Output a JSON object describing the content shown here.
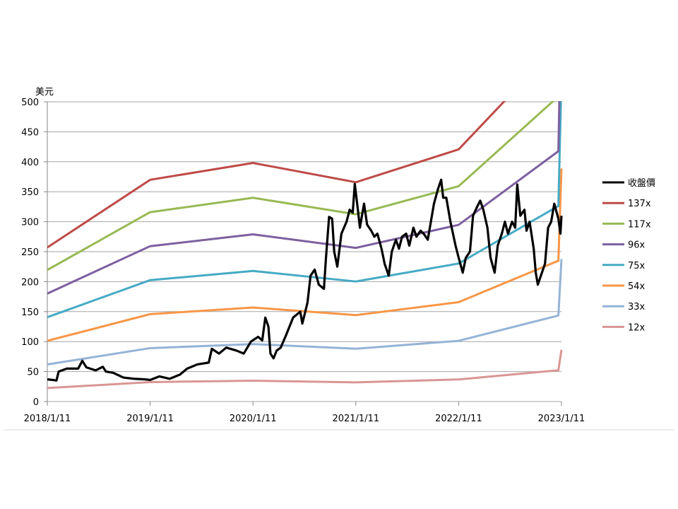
{
  "chart_data": {
    "type": "line",
    "title": "",
    "ylabel": "美元",
    "xlabel": "",
    "ylim": [
      0,
      500
    ],
    "yticks": [
      "0",
      "50",
      "100",
      "150",
      "200",
      "250",
      "300",
      "350",
      "400",
      "450",
      "500"
    ],
    "xticks": [
      "2018/1/11",
      "2019/1/11",
      "2020/1/11",
      "2021/1/11",
      "2022/1/11",
      "2023/1/11"
    ],
    "x_units": "years since 2018/1/11",
    "grid": true,
    "legend_position": "right",
    "price": {
      "name": "收盤價",
      "color": "#000000",
      "t": [
        0,
        0.055,
        0.089,
        0.11,
        0.19,
        0.3,
        0.34,
        0.38,
        0.47,
        0.54,
        0.57,
        0.64,
        0.74,
        0.84,
        0.95,
        1.0,
        1.09,
        1.19,
        1.29,
        1.36,
        1.46,
        1.57,
        1.6,
        1.67,
        1.74,
        1.84,
        1.91,
        1.98,
        2.05,
        2.09,
        2.12,
        2.15,
        2.17,
        2.2,
        2.23,
        2.27,
        2.32,
        2.39,
        2.46,
        2.48,
        2.53,
        2.56,
        2.6,
        2.64,
        2.69,
        2.71,
        2.74,
        2.77,
        2.79,
        2.82,
        2.86,
        2.91,
        2.94,
        2.97,
        2.99,
        3.02,
        3.04,
        3.08,
        3.11,
        3.15,
        3.18,
        3.21,
        3.25,
        3.28,
        3.32,
        3.35,
        3.39,
        3.42,
        3.45,
        3.49,
        3.52,
        3.56,
        3.59,
        3.63,
        3.66,
        3.7,
        3.73,
        3.76,
        3.8,
        3.83,
        3.85,
        3.88,
        3.92,
        3.97,
        4.0,
        4.04,
        4.07,
        4.11,
        4.14,
        4.18,
        4.21,
        4.24,
        4.28,
        4.31,
        4.35,
        4.38,
        4.42,
        4.45,
        4.48,
        4.52,
        4.55,
        4.57,
        4.6,
        4.64,
        4.66,
        4.69,
        4.73,
        4.75,
        4.77,
        4.81,
        4.84,
        4.87,
        4.9,
        4.93,
        4.97,
        4.99,
        5.0
      ],
      "values": [
        37,
        36,
        35,
        50,
        55,
        55,
        68,
        57,
        52,
        58,
        50,
        48,
        40,
        38,
        37,
        36,
        42,
        38,
        45,
        55,
        62,
        65,
        88,
        80,
        90,
        85,
        80,
        100,
        108,
        102,
        140,
        125,
        80,
        72,
        85,
        90,
        110,
        140,
        150,
        130,
        165,
        210,
        220,
        195,
        188,
        240,
        308,
        305,
        250,
        225,
        280,
        300,
        320,
        315,
        363,
        320,
        290,
        330,
        295,
        285,
        275,
        280,
        255,
        230,
        210,
        250,
        270,
        255,
        275,
        280,
        260,
        290,
        275,
        285,
        280,
        270,
        300,
        330,
        355,
        370,
        340,
        340,
        300,
        260,
        240,
        215,
        240,
        250,
        310,
        325,
        335,
        320,
        290,
        240,
        215,
        260,
        280,
        300,
        280,
        300,
        290,
        362,
        310,
        320,
        285,
        300,
        255,
        215,
        195,
        215,
        230,
        290,
        300,
        330,
        305,
        280,
        310
      ]
    },
    "eps_basis": {
      "t": [
        0,
        1,
        2,
        3,
        4,
        4.97,
        5.0
      ],
      "eps": [
        1.876,
        2.7,
        2.905,
        2.67,
        3.07,
        4.35,
        7.2
      ]
    },
    "bands": [
      {
        "name": "137x",
        "multiple": 137,
        "color": "#BE4B48"
      },
      {
        "name": "117x",
        "multiple": 117,
        "color": "#98B954"
      },
      {
        "name": "96x",
        "multiple": 96,
        "color": "#7D60A0"
      },
      {
        "name": "75x",
        "multiple": 75,
        "color": "#46AAC5"
      },
      {
        "name": "54x",
        "multiple": 54,
        "color": "#F79646"
      },
      {
        "name": "33x",
        "multiple": 33,
        "color": "#95B3D7"
      },
      {
        "name": "12x",
        "multiple": 12,
        "color": "#D99694"
      }
    ]
  }
}
